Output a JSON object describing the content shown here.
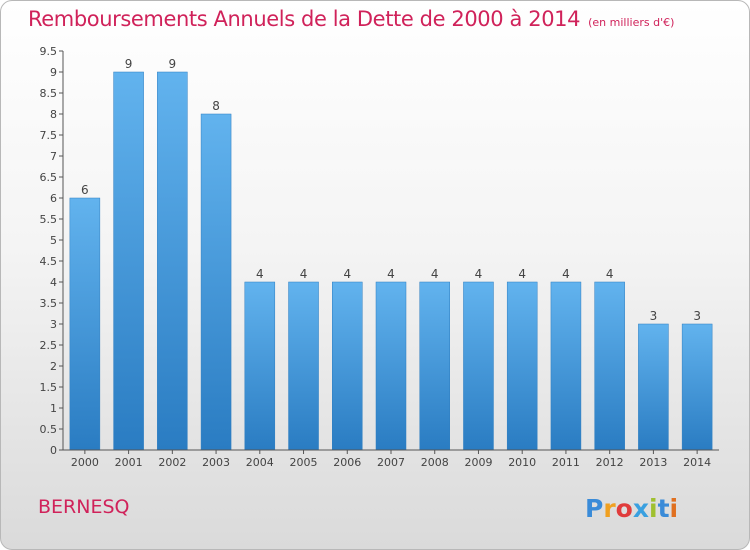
{
  "header": {
    "title": "Remboursements Annuels de la Dette de 2000 à 2014",
    "unit": "(en milliers d'€)"
  },
  "footer": {
    "place": "BERNESQ",
    "brand": "Proxiti"
  },
  "colors": {
    "title": "#d0225a",
    "bar_top": "#62b3ee",
    "bar_bottom": "#2a7cc2",
    "axis": "#555555"
  },
  "chart_data": {
    "type": "bar",
    "title": "Remboursements Annuels de la Dette de 2000 à 2014",
    "subtitle": "(en milliers d'€)",
    "xlabel": "",
    "ylabel": "",
    "categories": [
      "2000",
      "2001",
      "2002",
      "2003",
      "2004",
      "2005",
      "2006",
      "2007",
      "2008",
      "2009",
      "2010",
      "2011",
      "2012",
      "2013",
      "2014"
    ],
    "values": [
      6,
      9,
      9,
      8,
      4,
      4,
      4,
      4,
      4,
      4,
      4,
      4,
      4,
      3,
      3
    ],
    "data_labels": [
      "6",
      "9",
      "9",
      "8",
      "4",
      "4",
      "4",
      "4",
      "4",
      "4",
      "4",
      "4",
      "4",
      "3",
      "3"
    ],
    "y_ticks": [
      "0",
      "0.5",
      "1",
      "1.5",
      "2",
      "2.5",
      "3",
      "3.5",
      "4",
      "4.5",
      "5",
      "5.5",
      "6",
      "6.5",
      "7",
      "7.5",
      "8",
      "8.5",
      "9",
      "9.5"
    ],
    "ylim": [
      0,
      9.5
    ],
    "grid": false,
    "legend": "none"
  }
}
